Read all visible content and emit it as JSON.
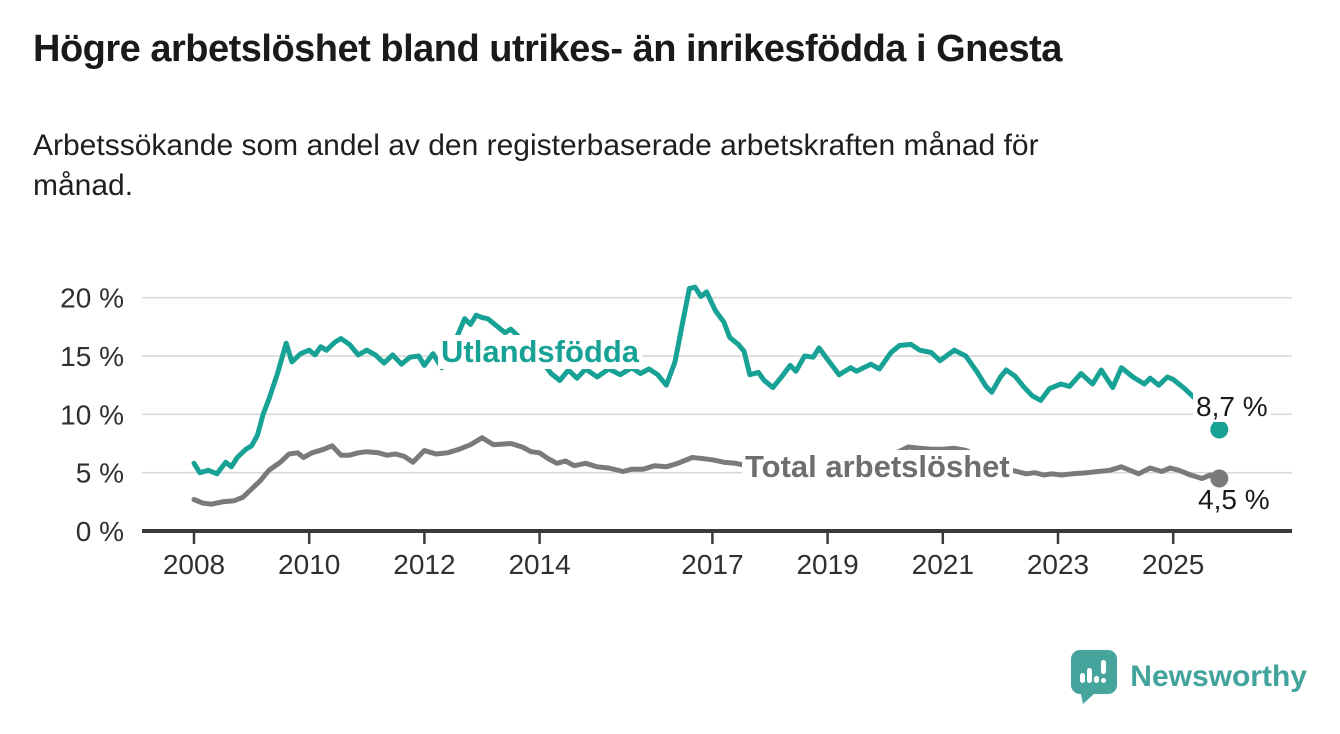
{
  "title": "Högre arbetslöshet bland utrikes- än inrikesfödda i Gnesta",
  "subtitle": {
    "line1": "Arbetssökande som andel av den registerbaserade arbetskraften månad för",
    "line2": "månad."
  },
  "colors": {
    "background": "#ffffff",
    "title_text": "#1a1a1a",
    "teal_series": "#18a296",
    "gray_series": "#7a7a7a",
    "gray_label": "#6e6e6e",
    "end_label_text": "#1a1a1a",
    "gridline": "#d9d9d9",
    "axis": "#3a3a3a",
    "axis_text": "#303030",
    "logo_teal": "#45a49c"
  },
  "logo": {
    "wordmark": "Newsworthy",
    "icon": "speech-bubble-bar-chart-icon"
  },
  "chart_data": {
    "type": "line",
    "title": "Högre arbetslöshet bland utrikes- än inrikesfödda i Gnesta",
    "xlabel": "",
    "ylabel": "",
    "y_unit": "%",
    "ylim": [
      0,
      21.5
    ],
    "xlim": [
      2007.7,
      2026.3
    ],
    "grid": "horizontal",
    "legend_position": "inline-labels",
    "y_ticks": [
      {
        "value": 0,
        "label": "0 %"
      },
      {
        "value": 5,
        "label": "5 %"
      },
      {
        "value": 10,
        "label": "10 %"
      },
      {
        "value": 15,
        "label": "15 %"
      },
      {
        "value": 20,
        "label": "20 %"
      }
    ],
    "x_ticks": [
      {
        "value": 2008,
        "label": "2008"
      },
      {
        "value": 2010,
        "label": "2010"
      },
      {
        "value": 2012,
        "label": "2012"
      },
      {
        "value": 2014,
        "label": "2014"
      },
      {
        "value": 2017,
        "label": "2017"
      },
      {
        "value": 2019,
        "label": "2019"
      },
      {
        "value": 2021,
        "label": "2021"
      },
      {
        "value": 2023,
        "label": "2023"
      },
      {
        "value": 2025,
        "label": "2025"
      }
    ],
    "series": [
      {
        "name": "Utlandsfödda",
        "end_label": "8,7 %",
        "end_value": 8.7,
        "color": "#18a296",
        "x": [
          2008.0,
          2008.1,
          2008.25,
          2008.4,
          2008.55,
          2008.65,
          2008.75,
          2008.9,
          2009.0,
          2009.1,
          2009.2,
          2009.3,
          2009.45,
          2009.6,
          2009.7,
          2009.85,
          2010.0,
          2010.1,
          2010.2,
          2010.3,
          2010.45,
          2010.55,
          2010.7,
          2010.85,
          2011.0,
          2011.15,
          2011.3,
          2011.45,
          2011.6,
          2011.75,
          2011.9,
          2012.0,
          2012.15,
          2012.3,
          2012.5,
          2012.7,
          2012.8,
          2012.9,
          2013.0,
          2013.1,
          2013.25,
          2013.4,
          2013.5,
          2013.65,
          2013.8,
          2014.0,
          2014.2,
          2014.35,
          2014.5,
          2014.65,
          2014.8,
          2015.0,
          2015.2,
          2015.4,
          2015.6,
          2015.75,
          2015.9,
          2016.05,
          2016.2,
          2016.35,
          2016.5,
          2016.6,
          2016.7,
          2016.8,
          2016.9,
          2017.05,
          2017.2,
          2017.3,
          2017.45,
          2017.55,
          2017.65,
          2017.8,
          2017.9,
          2018.05,
          2018.2,
          2018.35,
          2018.45,
          2018.6,
          2018.75,
          2018.85,
          2019.0,
          2019.2,
          2019.4,
          2019.5,
          2019.75,
          2019.9,
          2020.1,
          2020.25,
          2020.45,
          2020.6,
          2020.8,
          2020.95,
          2021.2,
          2021.4,
          2021.6,
          2021.75,
          2021.85,
          2022.0,
          2022.1,
          2022.25,
          2022.4,
          2022.55,
          2022.7,
          2022.85,
          2023.05,
          2023.2,
          2023.4,
          2023.6,
          2023.75,
          2023.95,
          2024.1,
          2024.3,
          2024.5,
          2024.6,
          2024.75,
          2024.9,
          2025.0,
          2025.2,
          2025.35,
          2025.5,
          2025.65,
          2025.8
        ],
        "values": [
          5.8,
          5.0,
          5.2,
          4.9,
          5.9,
          5.5,
          6.3,
          7.0,
          7.3,
          8.2,
          10.0,
          11.3,
          13.5,
          16.1,
          14.5,
          15.2,
          15.5,
          15.1,
          15.8,
          15.5,
          16.2,
          16.5,
          16.0,
          15.1,
          15.5,
          15.1,
          14.4,
          15.1,
          14.3,
          14.9,
          15.0,
          14.2,
          15.2,
          14.0,
          15.9,
          18.2,
          17.7,
          18.5,
          18.3,
          18.2,
          17.6,
          17.0,
          17.3,
          16.6,
          16.2,
          14.8,
          13.5,
          12.9,
          13.8,
          13.1,
          13.9,
          13.2,
          13.9,
          13.4,
          14.0,
          13.5,
          13.9,
          13.4,
          12.5,
          14.5,
          18.3,
          20.8,
          20.9,
          20.1,
          20.5,
          18.9,
          17.9,
          16.6,
          16.0,
          15.4,
          13.4,
          13.6,
          12.9,
          12.3,
          13.2,
          14.2,
          13.7,
          15.0,
          14.9,
          15.7,
          14.7,
          13.4,
          14.0,
          13.7,
          14.3,
          13.9,
          15.3,
          15.9,
          16.0,
          15.5,
          15.3,
          14.6,
          15.5,
          15.0,
          13.6,
          12.4,
          11.9,
          13.2,
          13.8,
          13.3,
          12.4,
          11.6,
          11.2,
          12.2,
          12.6,
          12.4,
          13.5,
          12.6,
          13.8,
          12.3,
          14.0,
          13.2,
          12.6,
          13.1,
          12.5,
          13.2,
          13.0,
          12.2,
          11.5,
          11.0,
          10.2,
          8.7
        ]
      },
      {
        "name": "Total arbetslöshet",
        "end_label": "4,5 %",
        "end_value": 4.5,
        "color": "#7a7a7a",
        "x": [
          2008.0,
          2008.15,
          2008.3,
          2008.5,
          2008.7,
          2008.85,
          2009.0,
          2009.15,
          2009.3,
          2009.5,
          2009.65,
          2009.8,
          2009.9,
          2010.05,
          2010.25,
          2010.4,
          2010.55,
          2010.7,
          2010.85,
          2011.0,
          2011.2,
          2011.35,
          2011.5,
          2011.65,
          2011.8,
          2012.0,
          2012.2,
          2012.4,
          2012.6,
          2012.8,
          2013.0,
          2013.2,
          2013.5,
          2013.7,
          2013.85,
          2014.0,
          2014.15,
          2014.3,
          2014.45,
          2014.6,
          2014.8,
          2015.0,
          2015.2,
          2015.45,
          2015.6,
          2015.8,
          2016.0,
          2016.2,
          2016.4,
          2016.65,
          2016.85,
          2017.0,
          2017.2,
          2017.4,
          2017.6,
          2017.8,
          2018.0,
          2018.25,
          2018.5,
          2018.75,
          2019.0,
          2019.25,
          2019.5,
          2019.75,
          2020.0,
          2020.2,
          2020.4,
          2020.6,
          2020.8,
          2021.0,
          2021.2,
          2021.4,
          2021.6,
          2021.8,
          2022.0,
          2022.2,
          2022.45,
          2022.6,
          2022.75,
          2022.9,
          2023.05,
          2023.25,
          2023.5,
          2023.7,
          2023.9,
          2024.1,
          2024.25,
          2024.4,
          2024.6,
          2024.8,
          2024.95,
          2025.1,
          2025.3,
          2025.5,
          2025.65,
          2025.8
        ],
        "values": [
          2.7,
          2.4,
          2.3,
          2.5,
          2.6,
          2.9,
          3.6,
          4.3,
          5.2,
          5.9,
          6.6,
          6.7,
          6.3,
          6.7,
          7.0,
          7.3,
          6.5,
          6.5,
          6.7,
          6.8,
          6.7,
          6.5,
          6.6,
          6.4,
          5.9,
          6.9,
          6.6,
          6.7,
          7.0,
          7.4,
          8.0,
          7.4,
          7.5,
          7.2,
          6.8,
          6.7,
          6.2,
          5.8,
          6.0,
          5.6,
          5.8,
          5.5,
          5.4,
          5.1,
          5.3,
          5.3,
          5.6,
          5.5,
          5.8,
          6.3,
          6.2,
          6.1,
          5.9,
          5.8,
          5.6,
          5.5,
          5.3,
          5.2,
          5.2,
          5.1,
          5.0,
          5.0,
          5.1,
          5.3,
          5.8,
          6.7,
          7.2,
          7.1,
          7.0,
          7.0,
          7.1,
          6.9,
          6.5,
          6.0,
          5.6,
          5.2,
          4.9,
          5.0,
          4.8,
          4.9,
          4.8,
          4.9,
          5.0,
          5.1,
          5.2,
          5.5,
          5.2,
          4.9,
          5.4,
          5.1,
          5.4,
          5.2,
          4.8,
          4.5,
          4.8,
          4.5
        ]
      }
    ]
  }
}
